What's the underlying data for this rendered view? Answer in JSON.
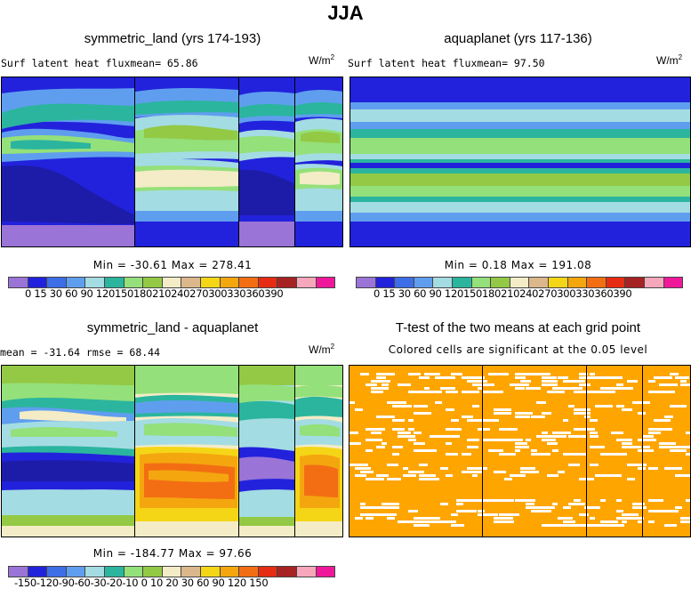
{
  "title": "JJA",
  "colors": {
    "lev1": [
      "#9a74d6",
      "#2222dc",
      "#3d6ee8",
      "#5f9eee",
      "#a4dce3",
      "#2bb59e",
      "#94e07a",
      "#93c945",
      "#f3ecc6",
      "#dcb78c",
      "#f4d617",
      "#f4a60f",
      "#f36e13",
      "#e62c12",
      "#a72323",
      "#f7a7bb",
      "#f0189a"
    ],
    "diff": [
      "#9a74d6",
      "#2222dc",
      "#3d6ee8",
      "#5f9eee",
      "#a4dce3",
      "#2bb59e",
      "#94e07a",
      "#93c945",
      "#f3ecc6",
      "#dcb78c",
      "#f4d617",
      "#f4a60f",
      "#f36e13",
      "#e62c12",
      "#a72323",
      "#f7a7bb",
      "#f0189a"
    ],
    "signif": "#ffa500"
  },
  "panels": {
    "p1": {
      "title": "symmetric_land (yrs 174-193)",
      "varline": "Surf latent heat fluxmean=  65.86",
      "units": "W/m",
      "units_exp": "2",
      "minmax": "Min = -30.61 Max = 278.41",
      "labels": "0  15  30  60  90 120150180210240270300330360390"
    },
    "p2": {
      "title": "aquaplanet (yrs 117-136)",
      "varline": "Surf latent heat fluxmean=  97.50",
      "units": "W/m",
      "units_exp": "2",
      "minmax": "Min =   0.18 Max = 191.08",
      "labels": "0  15  30  60  90 120150180210240270300330360390"
    },
    "p3": {
      "title": "symmetric_land - aquaplanet",
      "varline": "mean = -31.64    rmse =  68.44",
      "units": "W/m",
      "units_exp": "2",
      "minmax": "Min = -184.77 Max =  97.66",
      "labels": "-150-120-90-60-30-20-10  0  10  20  30  60  90 120 150"
    },
    "p4": {
      "title": "T-test of the two means at each grid point",
      "subtitle": "Colored cells are significant at the 0.05 level"
    }
  },
  "chart_data": [
    {
      "type": "heatmap",
      "title": "symmetric_land (yrs 174-193)",
      "variable": "Surf latent heat flux",
      "mean": 65.86,
      "min": -30.61,
      "max": 278.41,
      "units": "W/m2",
      "contour_levels": [
        0,
        15,
        30,
        60,
        90,
        120,
        150,
        180,
        210,
        240,
        270,
        300,
        330,
        360,
        390
      ]
    },
    {
      "type": "heatmap",
      "title": "aquaplanet (yrs 117-136)",
      "variable": "Surf latent heat flux",
      "mean": 97.5,
      "min": 0.18,
      "max": 191.08,
      "units": "W/m2",
      "contour_levels": [
        0,
        15,
        30,
        60,
        90,
        120,
        150,
        180,
        210,
        240,
        270,
        300,
        330,
        360,
        390
      ]
    },
    {
      "type": "heatmap",
      "title": "symmetric_land - aquaplanet",
      "mean": -31.64,
      "rmse": 68.44,
      "min": -184.77,
      "max": 97.66,
      "units": "W/m2",
      "contour_levels": [
        -150,
        -120,
        -90,
        -60,
        -30,
        -20,
        -10,
        0,
        10,
        20,
        30,
        60,
        90,
        120,
        150
      ]
    },
    {
      "type": "heatmap",
      "title": "T-test of the two means at each grid point",
      "subtitle": "Colored cells are significant at the 0.05 level"
    }
  ]
}
